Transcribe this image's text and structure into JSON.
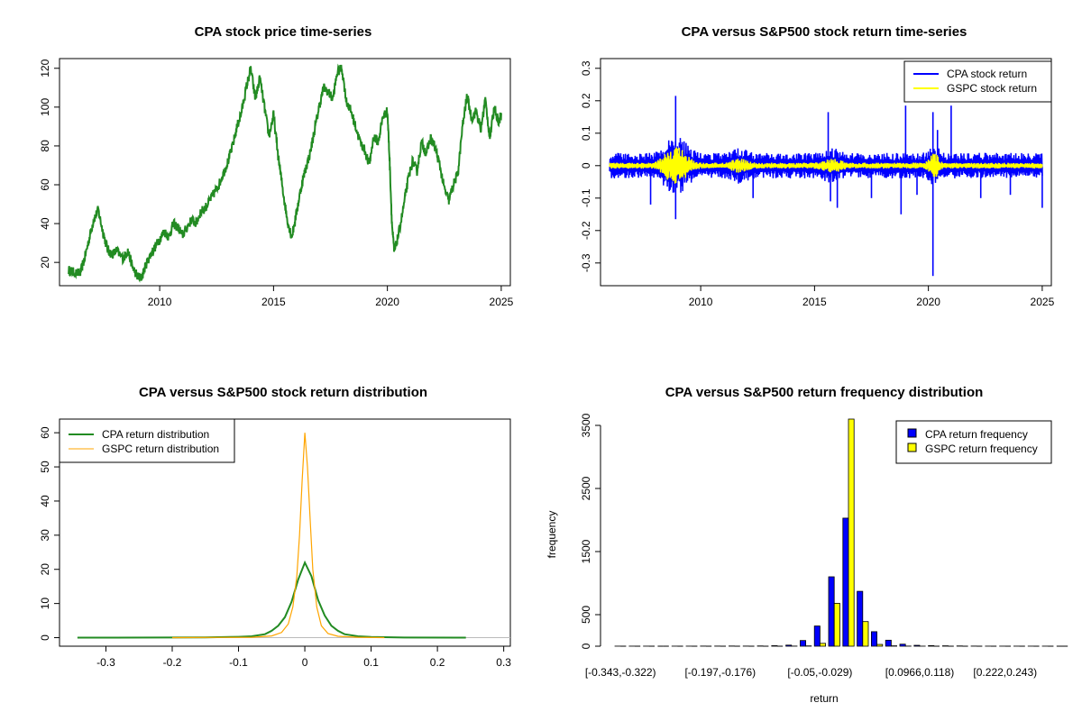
{
  "chart_data": [
    {
      "type": "line",
      "title": "CPA stock price time-series",
      "xlim": [
        2005.6,
        2025.4
      ],
      "ylim": [
        8,
        125
      ],
      "x_ticks": [
        2010,
        2015,
        2020,
        2025
      ],
      "y_ticks": [
        20,
        40,
        60,
        80,
        100,
        120
      ],
      "colors": {
        "series": "#228B22"
      },
      "series": [
        {
          "values": [
            [
              2006.0,
              16
            ],
            [
              2006.2,
              15
            ],
            [
              2006.5,
              14
            ],
            [
              2006.7,
              22
            ],
            [
              2006.9,
              32
            ],
            [
              2007.1,
              42
            ],
            [
              2007.3,
              47
            ],
            [
              2007.5,
              36
            ],
            [
              2007.7,
              27
            ],
            [
              2007.9,
              24
            ],
            [
              2008.1,
              26
            ],
            [
              2008.4,
              22
            ],
            [
              2008.6,
              26
            ],
            [
              2008.8,
              18
            ],
            [
              2009.0,
              13
            ],
            [
              2009.2,
              12
            ],
            [
              2009.4,
              19
            ],
            [
              2009.6,
              24
            ],
            [
              2009.8,
              28
            ],
            [
              2010.0,
              32
            ],
            [
              2010.2,
              36
            ],
            [
              2010.4,
              33
            ],
            [
              2010.6,
              40
            ],
            [
              2010.8,
              38
            ],
            [
              2011.0,
              34
            ],
            [
              2011.2,
              38
            ],
            [
              2011.4,
              42
            ],
            [
              2011.6,
              40
            ],
            [
              2011.8,
              46
            ],
            [
              2012.0,
              48
            ],
            [
              2012.2,
              52
            ],
            [
              2012.4,
              56
            ],
            [
              2012.6,
              60
            ],
            [
              2012.8,
              66
            ],
            [
              2013.0,
              72
            ],
            [
              2013.2,
              80
            ],
            [
              2013.4,
              90
            ],
            [
              2013.6,
              98
            ],
            [
              2013.8,
              110
            ],
            [
              2014.0,
              120
            ],
            [
              2014.2,
              104
            ],
            [
              2014.4,
              115
            ],
            [
              2014.6,
              100
            ],
            [
              2014.8,
              85
            ],
            [
              2015.0,
              96
            ],
            [
              2015.2,
              75
            ],
            [
              2015.4,
              58
            ],
            [
              2015.6,
              42
            ],
            [
              2015.8,
              33
            ],
            [
              2016.0,
              45
            ],
            [
              2016.2,
              58
            ],
            [
              2016.4,
              68
            ],
            [
              2016.6,
              76
            ],
            [
              2016.8,
              88
            ],
            [
              2017.0,
              100
            ],
            [
              2017.2,
              110
            ],
            [
              2017.4,
              108
            ],
            [
              2017.6,
              104
            ],
            [
              2017.8,
              118
            ],
            [
              2018.0,
              120
            ],
            [
              2018.2,
              103
            ],
            [
              2018.4,
              98
            ],
            [
              2018.6,
              90
            ],
            [
              2018.8,
              82
            ],
            [
              2019.0,
              78
            ],
            [
              2019.2,
              70
            ],
            [
              2019.4,
              85
            ],
            [
              2019.6,
              82
            ],
            [
              2019.8,
              95
            ],
            [
              2020.0,
              98
            ],
            [
              2020.1,
              72
            ],
            [
              2020.2,
              40
            ],
            [
              2020.3,
              25
            ],
            [
              2020.5,
              35
            ],
            [
              2020.7,
              48
            ],
            [
              2020.9,
              62
            ],
            [
              2021.1,
              72
            ],
            [
              2021.3,
              67
            ],
            [
              2021.5,
              82
            ],
            [
              2021.7,
              76
            ],
            [
              2021.9,
              84
            ],
            [
              2022.1,
              79
            ],
            [
              2022.3,
              70
            ],
            [
              2022.5,
              58
            ],
            [
              2022.7,
              52
            ],
            [
              2022.9,
              60
            ],
            [
              2023.1,
              66
            ],
            [
              2023.3,
              90
            ],
            [
              2023.5,
              106
            ],
            [
              2023.7,
              94
            ],
            [
              2023.9,
              98
            ],
            [
              2024.1,
              88
            ],
            [
              2024.3,
              104
            ],
            [
              2024.5,
              84
            ],
            [
              2024.7,
              100
            ],
            [
              2024.9,
              92
            ],
            [
              2025.0,
              97
            ]
          ]
        }
      ]
    },
    {
      "type": "line",
      "title": "CPA versus S&P500 stock return time-series",
      "xlim": [
        2005.6,
        2025.4
      ],
      "ylim": [
        -0.37,
        0.33
      ],
      "x_ticks": [
        2010,
        2015,
        2020,
        2025
      ],
      "y_ticks": [
        -0.3,
        -0.2,
        -0.1,
        0.0,
        0.1,
        0.2,
        0.3
      ],
      "legend": "top-right",
      "series": [
        {
          "name": "CPA stock return",
          "color": "#0000FF",
          "spikes": [
            [
              2008.9,
              0.215
            ],
            [
              2008.9,
              -0.165
            ],
            [
              2007.8,
              -0.12
            ],
            [
              2012.3,
              -0.1
            ],
            [
              2015.6,
              0.165
            ],
            [
              2015.7,
              -0.11
            ],
            [
              2016.0,
              -0.13
            ],
            [
              2017.5,
              -0.1
            ],
            [
              2018.8,
              -0.15
            ],
            [
              2019.0,
              0.185
            ],
            [
              2019.5,
              -0.09
            ],
            [
              2020.2,
              -0.34
            ],
            [
              2020.2,
              0.165
            ],
            [
              2020.4,
              0.11
            ],
            [
              2021.0,
              0.185
            ],
            [
              2022.3,
              -0.1
            ],
            [
              2023.6,
              -0.09
            ],
            [
              2025.0,
              -0.13
            ]
          ]
        },
        {
          "name": "GSPC stock return",
          "color": "#FFFF00"
        }
      ]
    },
    {
      "type": "line",
      "title": "CPA versus S&P500 stock return distribution",
      "xlim": [
        -0.37,
        0.31
      ],
      "ylim": [
        -2.5,
        64
      ],
      "x_ticks": [
        -0.3,
        -0.2,
        -0.1,
        0.0,
        0.1,
        0.2,
        0.3
      ],
      "y_ticks": [
        0,
        10,
        20,
        30,
        40,
        50,
        60
      ],
      "legend": "top-left",
      "series": [
        {
          "name": "CPA return distribution",
          "color": "#228B22",
          "values": [
            [
              -0.343,
              0
            ],
            [
              -0.15,
              0.05
            ],
            [
              -0.1,
              0.25
            ],
            [
              -0.08,
              0.4
            ],
            [
              -0.06,
              1.0
            ],
            [
              -0.05,
              2.0
            ],
            [
              -0.04,
              3.5
            ],
            [
              -0.03,
              6
            ],
            [
              -0.02,
              10.5
            ],
            [
              -0.01,
              17
            ],
            [
              0.0,
              22
            ],
            [
              0.01,
              18
            ],
            [
              0.02,
              11
            ],
            [
              0.03,
              6.5
            ],
            [
              0.04,
              3.5
            ],
            [
              0.05,
              2.0
            ],
            [
              0.06,
              1.0
            ],
            [
              0.08,
              0.4
            ],
            [
              0.1,
              0.2
            ],
            [
              0.15,
              0.03
            ],
            [
              0.243,
              0
            ]
          ]
        },
        {
          "name": "GSPC return distribution",
          "color": "#FFA500",
          "values": [
            [
              -0.2,
              0
            ],
            [
              -0.08,
              0.1
            ],
            [
              -0.05,
              0.5
            ],
            [
              -0.035,
              1.5
            ],
            [
              -0.025,
              4
            ],
            [
              -0.018,
              9
            ],
            [
              -0.012,
              18
            ],
            [
              -0.008,
              30
            ],
            [
              -0.004,
              46
            ],
            [
              0.0,
              60
            ],
            [
              0.004,
              50
            ],
            [
              0.008,
              35
            ],
            [
              0.012,
              20
            ],
            [
              0.018,
              9
            ],
            [
              0.025,
              3.5
            ],
            [
              0.035,
              1.2
            ],
            [
              0.05,
              0.4
            ],
            [
              0.08,
              0.1
            ],
            [
              0.12,
              0
            ]
          ]
        }
      ]
    },
    {
      "type": "bar",
      "title": "CPA versus S&P500 return frequency distribution",
      "xlabel": "return",
      "ylabel": "frequency",
      "ylim": [
        0,
        3600
      ],
      "y_ticks": [
        0,
        500,
        1500,
        2500,
        3500
      ],
      "x_tick_labels": [
        "[-0.343,-0.322)",
        "[-0.197,-0.176)",
        "[-0.05,-0.029)",
        "[0.0966,0.118)",
        "[0.222,0.243)"
      ],
      "x_tick_bin_index": [
        0,
        7,
        14,
        21,
        27
      ],
      "legend": "top-right",
      "series": [
        {
          "name": "CPA return frequency",
          "color": "#0000FF",
          "values": [
            1,
            1,
            1,
            0,
            1,
            1,
            2,
            2,
            3,
            2,
            4,
            8,
            17,
            90,
            320,
            1100,
            2030,
            870,
            230,
            95,
            32,
            14,
            9,
            6,
            4,
            2,
            1,
            1,
            1,
            1,
            1,
            0
          ]
        },
        {
          "name": "GSPC return frequency",
          "color": "#FFFF00",
          "values": [
            0,
            0,
            0,
            0,
            0,
            0,
            0,
            0,
            0,
            0,
            0,
            0,
            2,
            5,
            45,
            680,
            3600,
            390,
            28,
            6,
            2,
            1,
            0,
            0,
            0,
            0,
            0,
            0,
            0,
            0,
            0,
            0
          ]
        }
      ]
    }
  ]
}
